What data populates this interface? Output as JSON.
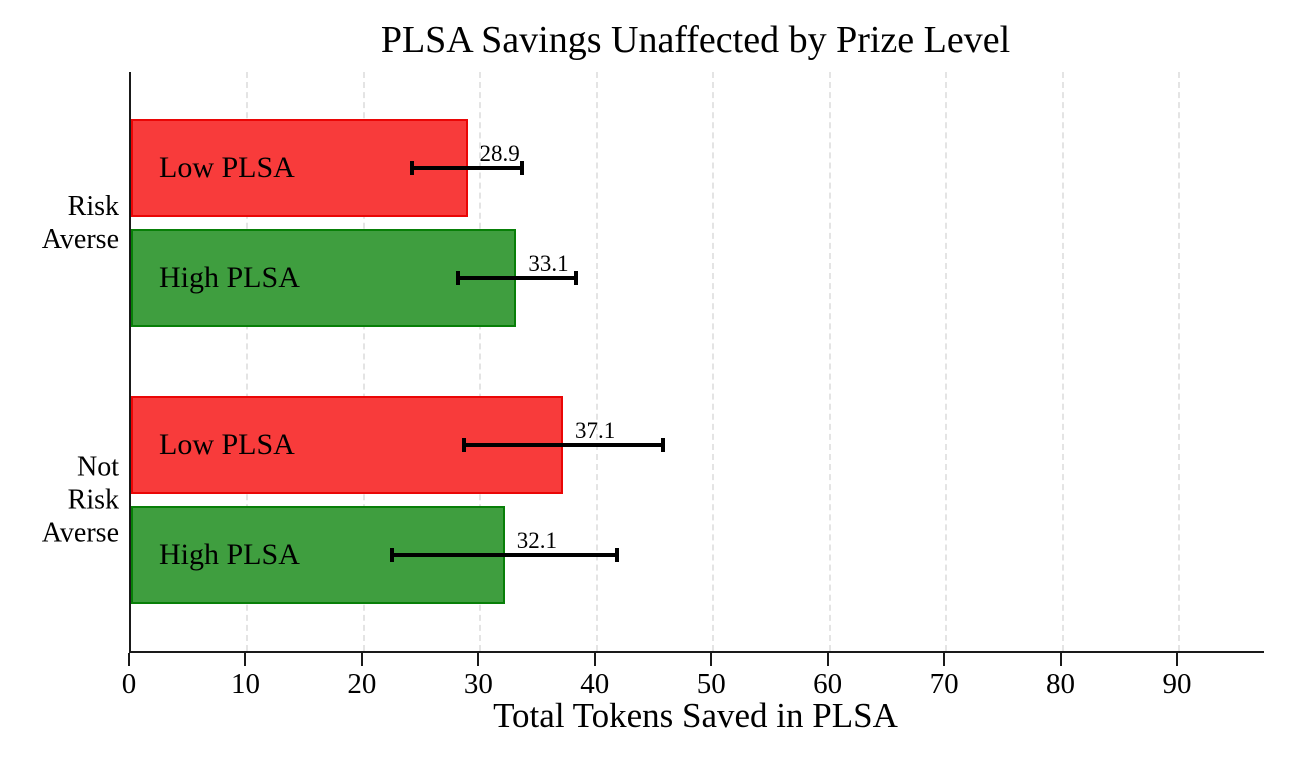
{
  "chart_data": {
    "type": "bar",
    "orientation": "horizontal",
    "title": "PLSA Savings Unaffected by Prize Level",
    "xlabel": "Total Tokens Saved in PLSA",
    "ylabel": "",
    "xlim": [
      0,
      97.3
    ],
    "xticks": [
      0,
      10,
      20,
      30,
      40,
      50,
      60,
      70,
      80,
      90
    ],
    "grid": {
      "show": true,
      "axis": "x",
      "line_style": "dashed",
      "color": "#e4e4e4"
    },
    "legend": {
      "show": false
    },
    "error_bars_shown": true,
    "value_labels_shown": true,
    "groups": [
      {
        "category": "Risk Averse",
        "category_lines": [
          "Risk",
          "Averse"
        ],
        "bars": [
          {
            "series": "Low PLSA",
            "label": "Low PLSA",
            "value": 28.9,
            "value_label": "28.9",
            "ci_low": 24.1,
            "ci_high": 33.6,
            "fill": "#f83b3b",
            "edge": "#ea0606"
          },
          {
            "series": "High PLSA",
            "label": "High PLSA",
            "value": 33.1,
            "value_label": "33.1",
            "ci_low": 28.1,
            "ci_high": 38.2,
            "fill": "#3f9e3f",
            "edge": "#087f08"
          }
        ]
      },
      {
        "category": "Not Risk Averse",
        "category_lines": [
          "Not",
          "Risk",
          "Averse"
        ],
        "bars": [
          {
            "series": "Low PLSA",
            "label": "Low PLSA",
            "value": 37.1,
            "value_label": "37.1",
            "ci_low": 28.6,
            "ci_high": 45.7,
            "fill": "#f83b3b",
            "edge": "#ea0606"
          },
          {
            "series": "High PLSA",
            "label": "High PLSA",
            "value": 32.1,
            "value_label": "32.1",
            "ci_low": 22.4,
            "ci_high": 41.7,
            "fill": "#3f9e3f",
            "edge": "#087f08"
          }
        ]
      }
    ],
    "colors": {
      "low_plsa_fill": "#f83b3b",
      "low_plsa_edge": "#ea0606",
      "high_plsa_fill": "#3f9e3f",
      "high_plsa_edge": "#087f08",
      "error_bar": "#000000",
      "axis": "#1a1a1a",
      "grid": "#e4e4e4",
      "text": "#000000",
      "background": "#ffffff"
    }
  }
}
